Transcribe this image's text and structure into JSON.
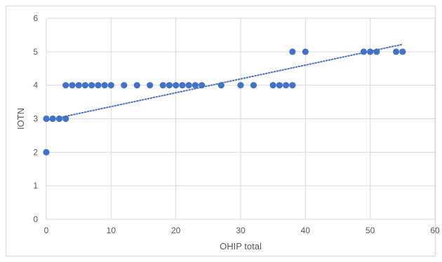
{
  "chart_data": {
    "type": "scatter",
    "title": "",
    "xlabel": "OHIP total",
    "ylabel": "IOTN",
    "xlim": [
      0,
      60
    ],
    "ylim": [
      0,
      6
    ],
    "x_ticks": [
      "0",
      "10",
      "20",
      "30",
      "40",
      "50",
      "60"
    ],
    "y_ticks": [
      "0",
      "1",
      "2",
      "3",
      "4",
      "5",
      "6"
    ],
    "grid": true,
    "legend": "none",
    "marker_color": "#4472c4",
    "trendline": {
      "type": "linear",
      "style": "dotted",
      "color": "#4472c4",
      "from": [
        0,
        2.95
      ],
      "to": [
        55,
        5.22
      ]
    },
    "points": [
      [
        0,
        2
      ],
      [
        0,
        3
      ],
      [
        1,
        3
      ],
      [
        2,
        3
      ],
      [
        3,
        3
      ],
      [
        3,
        4
      ],
      [
        4,
        4
      ],
      [
        5,
        4
      ],
      [
        6,
        4
      ],
      [
        7,
        4
      ],
      [
        8,
        4
      ],
      [
        9,
        4
      ],
      [
        10,
        4
      ],
      [
        12,
        4
      ],
      [
        14,
        4
      ],
      [
        16,
        4
      ],
      [
        18,
        4
      ],
      [
        19,
        4
      ],
      [
        20,
        4
      ],
      [
        21,
        4
      ],
      [
        22,
        4
      ],
      [
        23,
        4
      ],
      [
        24,
        4
      ],
      [
        27,
        4
      ],
      [
        30,
        4
      ],
      [
        32,
        4
      ],
      [
        35,
        4
      ],
      [
        36,
        4
      ],
      [
        37,
        4
      ],
      [
        38,
        4
      ],
      [
        38,
        5
      ],
      [
        40,
        5
      ],
      [
        49,
        5
      ],
      [
        50,
        5
      ],
      [
        51,
        5
      ],
      [
        54,
        5
      ],
      [
        55,
        5
      ]
    ]
  }
}
